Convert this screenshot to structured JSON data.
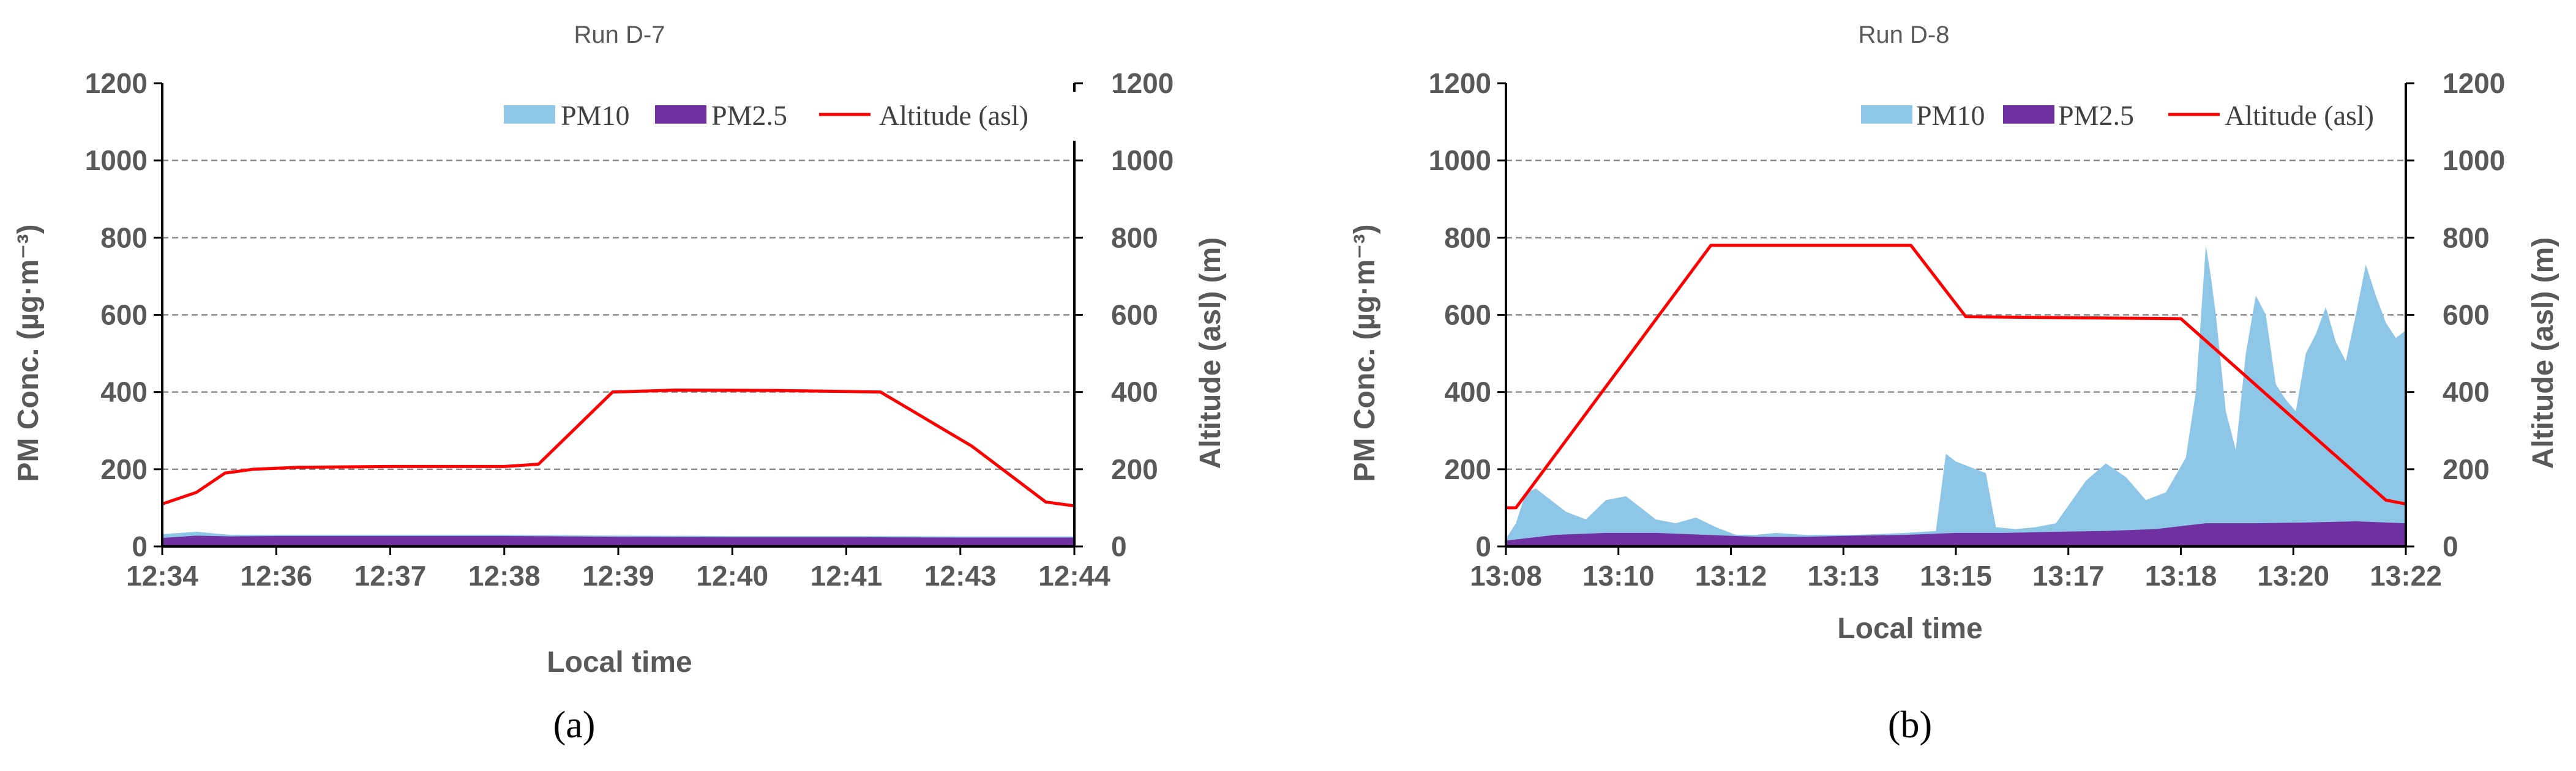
{
  "chart_data": [
    {
      "type": "area",
      "title": "Run D-7",
      "panel_label": "(a)",
      "xlabel": "Local time",
      "ylabel_left": "PM Conc. (µg·m⁻³)",
      "ylabel_right": "Altitude (asl) (m)",
      "ylim": [
        0,
        1200
      ],
      "y2lim": [
        0,
        1200
      ],
      "yticks": [
        "0",
        "200",
        "400",
        "600",
        "800",
        "1000",
        "1200"
      ],
      "y2ticks": [
        "0",
        "200",
        "400",
        "600",
        "800",
        "1000",
        "1200"
      ],
      "xticks": [
        "12:34",
        "12:36",
        "12:37",
        "12:38",
        "12:39",
        "12:40",
        "12:41",
        "12:43",
        "12:44"
      ],
      "legend": [
        "PM10",
        "PM2.5",
        "Altitude (asl)"
      ],
      "legend_position": "top-right",
      "colors": {
        "pm10": "#8ec6e8",
        "pm25": "#7030a0",
        "altitude": "#ff0000"
      },
      "series": [
        {
          "name": "PM10",
          "x": [
            0,
            0.3,
            0.6,
            1,
            1.5,
            2,
            3,
            4,
            5,
            6,
            7,
            8
          ],
          "values": [
            32,
            38,
            30,
            30,
            30,
            30,
            30,
            28,
            27,
            27,
            26,
            26
          ]
        },
        {
          "name": "PM2.5",
          "x": [
            0,
            0.3,
            0.6,
            1,
            1.5,
            2,
            3,
            4,
            5,
            6,
            7,
            8
          ],
          "values": [
            22,
            28,
            26,
            27,
            27,
            27,
            27,
            25,
            24,
            24,
            23,
            23
          ]
        },
        {
          "name": "Altitude (asl)",
          "x": [
            0,
            0.3,
            0.55,
            0.8,
            1.2,
            2,
            3,
            3.3,
            3.95,
            4.5,
            5.4,
            6.3,
            7.1,
            7.75,
            8
          ],
          "values": [
            110,
            140,
            190,
            200,
            205,
            207,
            207,
            213,
            400,
            405,
            404,
            400,
            260,
            115,
            105
          ]
        }
      ]
    },
    {
      "type": "area",
      "title": "Run D-8",
      "panel_label": "(b)",
      "xlabel": "Local time",
      "ylabel_left": "PM Conc. (µg·m⁻³)",
      "ylabel_right": "Altitude (asl)  (m)",
      "ylim": [
        0,
        1200
      ],
      "y2lim": [
        0,
        1200
      ],
      "yticks": [
        "0",
        "200",
        "400",
        "600",
        "800",
        "1000",
        "1200"
      ],
      "y2ticks": [
        "0",
        "200",
        "400",
        "600",
        "800",
        "1000",
        "1200"
      ],
      "xticks": [
        "13:08",
        "13:10",
        "13:12",
        "13:13",
        "13:15",
        "13:17",
        "13:18",
        "13:20",
        "13:22"
      ],
      "legend": [
        "PM10",
        "PM2.5",
        "Altitude (asl)"
      ],
      "legend_position": "top-right",
      "colors": {
        "pm10": "#8ec6e8",
        "pm25": "#7030a0",
        "altitude": "#ff0000"
      },
      "series": [
        {
          "name": "PM10",
          "x": [
            0,
            0.1,
            0.2,
            0.3,
            0.45,
            0.6,
            0.8,
            1.0,
            1.2,
            1.35,
            1.5,
            1.7,
            1.9,
            2.1,
            2.3,
            2.5,
            2.7,
            3.0,
            3.5,
            4.0,
            4.3,
            4.4,
            4.5,
            4.7,
            4.8,
            4.9,
            5.1,
            5.3,
            5.5,
            5.8,
            6.0,
            6.2,
            6.4,
            6.6,
            6.8,
            6.9,
            7.0,
            7.05,
            7.1,
            7.2,
            7.3,
            7.4,
            7.5,
            7.6,
            7.7,
            7.8,
            7.9,
            8.0,
            8.1,
            8.2,
            8.3,
            8.4,
            8.5,
            8.6,
            8.7,
            8.8,
            8.9,
            9.0
          ],
          "values": [
            20,
            60,
            140,
            150,
            120,
            90,
            70,
            120,
            130,
            100,
            70,
            60,
            75,
            50,
            30,
            30,
            35,
            30,
            30,
            35,
            40,
            240,
            220,
            200,
            190,
            50,
            45,
            50,
            60,
            170,
            215,
            180,
            120,
            140,
            230,
            400,
            780,
            700,
            600,
            350,
            250,
            500,
            650,
            600,
            420,
            380,
            350,
            500,
            550,
            620,
            530,
            480,
            600,
            730,
            650,
            580,
            540,
            560
          ]
        },
        {
          "name": "PM2.5",
          "x": [
            0,
            0.5,
            1,
            1.5,
            2,
            2.5,
            3,
            3.5,
            4,
            4.5,
            5,
            5.5,
            6,
            6.5,
            7,
            7.5,
            8,
            8.5,
            9
          ],
          "values": [
            15,
            30,
            35,
            35,
            30,
            25,
            25,
            28,
            30,
            35,
            35,
            38,
            40,
            45,
            60,
            60,
            62,
            65,
            60
          ]
        },
        {
          "name": "Altitude (asl)",
          "x": [
            0,
            0.1,
            2.05,
            2.2,
            4.05,
            4.6,
            6.75,
            8.8,
            9
          ],
          "values": [
            100,
            100,
            780,
            780,
            780,
            595,
            590,
            120,
            110
          ]
        }
      ]
    }
  ]
}
